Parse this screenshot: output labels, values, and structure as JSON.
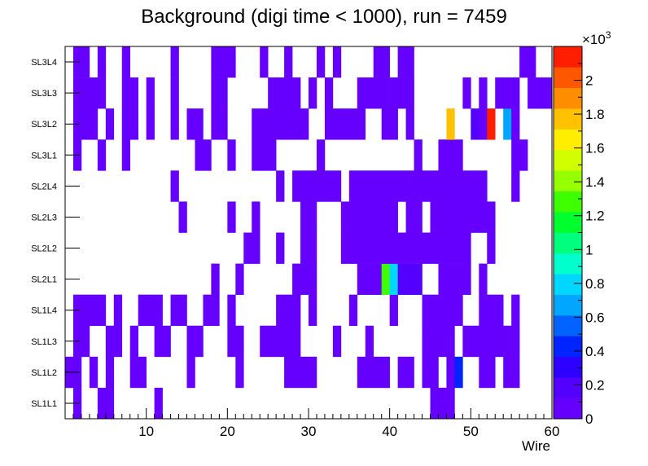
{
  "chart_data": {
    "type": "heatmap",
    "title": "Background (digi time < 1000), run = 7459",
    "xlabel": "Wire",
    "ylabel": "",
    "xlim": [
      0,
      60
    ],
    "x_ticks": [
      10,
      20,
      30,
      40,
      50,
      60
    ],
    "y_categories": [
      "SL1L1",
      "SL1L2",
      "SL1L3",
      "SL1L4",
      "SL2L1",
      "SL2L2",
      "SL2L3",
      "SL2L4",
      "SL3L1",
      "SL3L2",
      "SL3L3",
      "SL3L4"
    ],
    "z_range": [
      0,
      2200
    ],
    "z_multiplier_label": "×10",
    "z_multiplier_exp": "3",
    "z_tick_labels": [
      "0",
      "0.2",
      "0.4",
      "0.6",
      "0.8",
      "1",
      "1.2",
      "1.4",
      "1.6",
      "1.8",
      "2"
    ],
    "palette": [
      "#6500ff",
      "#5400ff",
      "#2d00ff",
      "#0024ff",
      "#0063ff",
      "#00a6ff",
      "#00d6ff",
      "#00ffcc",
      "#00ff7e",
      "#00ff2d",
      "#3dff00",
      "#96ff00",
      "#d1ff00",
      "#ffee00",
      "#ffc100",
      "#ff8d00",
      "#ff5600",
      "#ff1e00"
    ],
    "cells": [
      {
        "row": "SL1L1",
        "segments": [
          [
            1,
            2,
            40
          ],
          [
            4,
            6,
            40
          ],
          [
            11,
            12,
            40
          ],
          [
            45,
            48,
            40
          ]
        ]
      },
      {
        "row": "SL1L2",
        "segments": [
          [
            0,
            2,
            40
          ],
          [
            3,
            4,
            40
          ],
          [
            5,
            6,
            40
          ],
          [
            8,
            10,
            40
          ],
          [
            15,
            16,
            40
          ],
          [
            21,
            22,
            40
          ],
          [
            27,
            31,
            40
          ],
          [
            36,
            40,
            40
          ],
          [
            41,
            43,
            40
          ],
          [
            44,
            46,
            40
          ],
          [
            47,
            48,
            40
          ],
          [
            48,
            49,
            400
          ],
          [
            51,
            53,
            40
          ],
          [
            54,
            56,
            40
          ]
        ]
      },
      {
        "row": "SL1L3",
        "segments": [
          [
            1,
            3,
            40
          ],
          [
            5,
            7,
            40
          ],
          [
            8,
            9,
            40
          ],
          [
            11,
            13,
            40
          ],
          [
            15,
            17,
            40
          ],
          [
            20,
            22,
            40
          ],
          [
            24,
            29,
            40
          ],
          [
            33,
            34,
            40
          ],
          [
            37,
            38,
            40
          ],
          [
            44,
            45,
            40
          ],
          [
            45,
            48,
            40
          ],
          [
            49,
            51,
            40
          ],
          [
            51,
            52,
            40
          ],
          [
            52,
            53,
            100
          ],
          [
            53,
            55,
            80
          ],
          [
            55,
            56,
            100
          ]
        ]
      },
      {
        "row": "SL1L4",
        "segments": [
          [
            1,
            5,
            40
          ],
          [
            6,
            7,
            40
          ],
          [
            9,
            12,
            40
          ],
          [
            13,
            15,
            40
          ],
          [
            17,
            19,
            40
          ],
          [
            20,
            21,
            40
          ],
          [
            26,
            29,
            40
          ],
          [
            30,
            31,
            40
          ],
          [
            35,
            36,
            40
          ],
          [
            40,
            41,
            40
          ],
          [
            44,
            49,
            40
          ],
          [
            51,
            54,
            40
          ],
          [
            55,
            56,
            40
          ]
        ]
      },
      {
        "row": "SL2L1",
        "segments": [
          [
            18,
            19,
            40
          ],
          [
            21,
            22,
            40
          ],
          [
            28,
            31,
            40
          ],
          [
            36,
            39,
            40
          ],
          [
            39,
            40,
            1320
          ],
          [
            40,
            41,
            850
          ],
          [
            41,
            44,
            160
          ],
          [
            46,
            50,
            40
          ],
          [
            51,
            52,
            40
          ]
        ]
      },
      {
        "row": "SL2L2",
        "segments": [
          [
            22,
            23,
            40
          ],
          [
            23,
            24,
            40
          ],
          [
            26,
            27,
            40
          ],
          [
            29,
            31,
            40
          ],
          [
            34,
            50,
            40
          ],
          [
            52,
            53,
            40
          ]
        ]
      },
      {
        "row": "SL2L3",
        "segments": [
          [
            14,
            15,
            40
          ],
          [
            20,
            21,
            40
          ],
          [
            23,
            24,
            40
          ],
          [
            29,
            31,
            40
          ],
          [
            34,
            37,
            40
          ],
          [
            37,
            41,
            40
          ],
          [
            42,
            44,
            40
          ],
          [
            45,
            53,
            40
          ]
        ]
      },
      {
        "row": "SL2L4",
        "segments": [
          [
            13,
            14,
            40
          ],
          [
            26,
            27,
            40
          ],
          [
            28,
            34,
            40
          ],
          [
            35,
            45,
            40
          ],
          [
            45,
            52,
            40
          ],
          [
            55,
            56,
            40
          ]
        ]
      },
      {
        "row": "SL3L1",
        "segments": [
          [
            1,
            2,
            40
          ],
          [
            4,
            5,
            40
          ],
          [
            7,
            8,
            40
          ],
          [
            16,
            18,
            40
          ],
          [
            20,
            21,
            40
          ],
          [
            23,
            26,
            40
          ],
          [
            31,
            32,
            40
          ],
          [
            43,
            44,
            40
          ],
          [
            46,
            49,
            40
          ],
          [
            55,
            57,
            40
          ]
        ]
      },
      {
        "row": "SL3L2",
        "segments": [
          [
            1,
            4,
            40
          ],
          [
            5,
            6,
            40
          ],
          [
            7,
            9,
            40
          ],
          [
            10,
            11,
            40
          ],
          [
            13,
            14,
            40
          ],
          [
            15,
            17,
            40
          ],
          [
            18,
            20,
            40
          ],
          [
            23,
            30,
            40
          ],
          [
            32,
            37,
            40
          ],
          [
            39,
            41,
            40
          ],
          [
            42,
            43,
            40
          ],
          [
            47,
            48,
            1820
          ],
          [
            50,
            51,
            160
          ],
          [
            51,
            52,
            40
          ],
          [
            52,
            53,
            2120
          ],
          [
            54,
            55,
            690
          ],
          [
            55,
            56,
            40
          ]
        ]
      },
      {
        "row": "SL3L3",
        "segments": [
          [
            1,
            5,
            40
          ],
          [
            7,
            9,
            40
          ],
          [
            10,
            11,
            40
          ],
          [
            13,
            14,
            40
          ],
          [
            18,
            20,
            40
          ],
          [
            25,
            29,
            40
          ],
          [
            30,
            31,
            40
          ],
          [
            32,
            33,
            40
          ],
          [
            36,
            38,
            40
          ],
          [
            38,
            40,
            40
          ],
          [
            40,
            43,
            40
          ],
          [
            49,
            50,
            40
          ],
          [
            51,
            52,
            40
          ],
          [
            53,
            56,
            40
          ],
          [
            57,
            58,
            40
          ],
          [
            58,
            59,
            40
          ],
          [
            59,
            60,
            40
          ]
        ]
      },
      {
        "row": "SL3L4",
        "segments": [
          [
            1,
            3,
            40
          ],
          [
            4,
            5,
            40
          ],
          [
            7,
            8,
            40
          ],
          [
            13,
            14,
            40
          ],
          [
            18,
            21,
            40
          ],
          [
            24,
            25,
            40
          ],
          [
            27,
            28,
            40
          ],
          [
            31,
            32,
            40
          ],
          [
            33,
            34,
            40
          ],
          [
            38,
            40,
            40
          ],
          [
            41,
            43,
            40
          ],
          [
            56,
            58,
            40
          ]
        ]
      }
    ]
  }
}
